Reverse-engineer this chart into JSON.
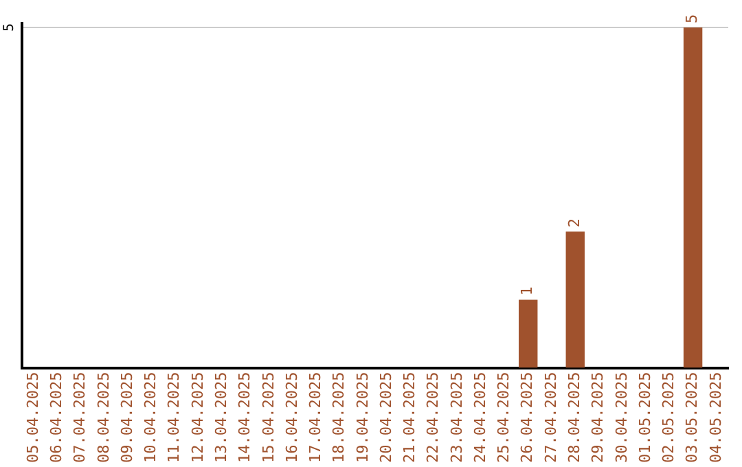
{
  "chart_data": {
    "type": "bar",
    "categories": [
      "05.04.2025",
      "06.04.2025",
      "07.04.2025",
      "08.04.2025",
      "09.04.2025",
      "10.04.2025",
      "11.04.2025",
      "12.04.2025",
      "13.04.2025",
      "14.04.2025",
      "15.04.2025",
      "16.04.2025",
      "17.04.2025",
      "18.04.2025",
      "19.04.2025",
      "20.04.2025",
      "21.04.2025",
      "22.04.2025",
      "23.04.2025",
      "24.04.2025",
      "25.04.2025",
      "26.04.2025",
      "27.04.2025",
      "28.04.2025",
      "29.04.2025",
      "30.04.2025",
      "01.05.2025",
      "02.05.2025",
      "03.05.2025",
      "04.05.2025"
    ],
    "values": [
      null,
      null,
      null,
      null,
      null,
      null,
      null,
      null,
      null,
      null,
      null,
      null,
      null,
      null,
      null,
      null,
      null,
      null,
      null,
      null,
      null,
      1,
      null,
      2,
      null,
      null,
      null,
      null,
      5,
      null
    ],
    "data_labels": true,
    "ylim": [
      0,
      5
    ],
    "ref_lines": [
      {
        "axis": "y",
        "value": 5,
        "label": "5",
        "color": "#cccccc"
      }
    ],
    "color": "#a0522d",
    "legend": false
  }
}
